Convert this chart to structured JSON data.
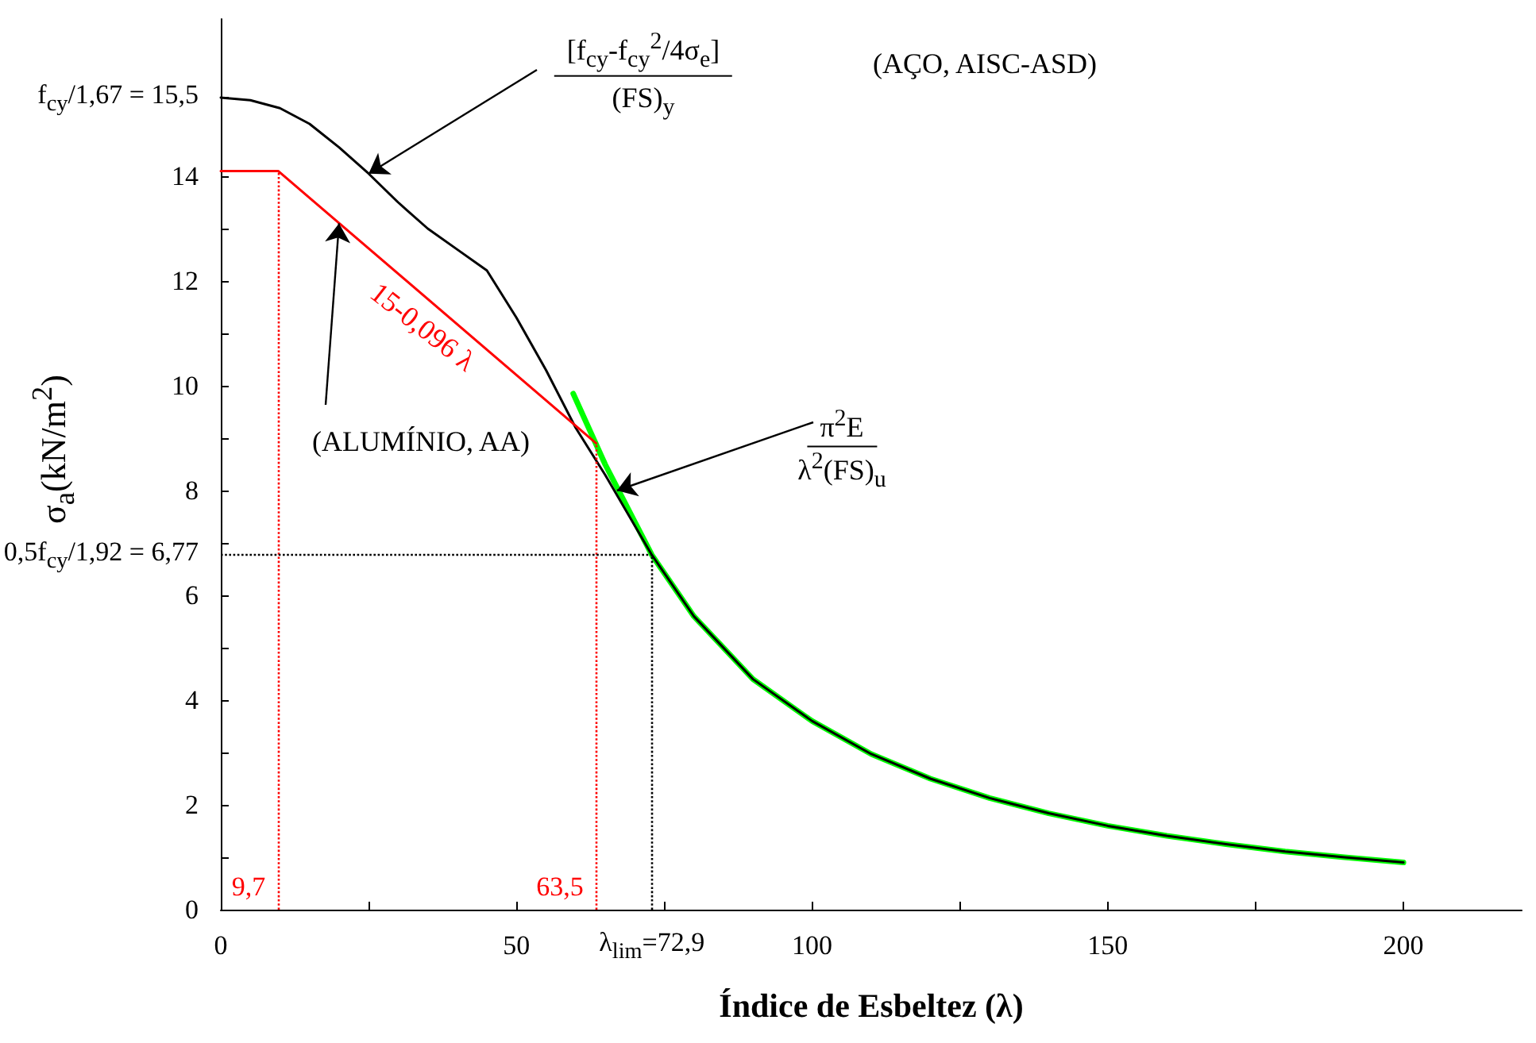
{
  "chart_data": {
    "type": "line",
    "xlabel": "Índice de Esbeltez (λ)",
    "ylabel": "σ$_{a}$(kN/m$^{2}$)",
    "xlim": [
      0,
      220
    ],
    "xticks": [
      0,
      {
        "value": 25,
        "label": null
      },
      50,
      {
        "value": 75,
        "label": null
      },
      100,
      {
        "value": 125,
        "label": null
      },
      150,
      {
        "value": 175,
        "label": null
      },
      200
    ],
    "ylim": [
      0,
      17
    ],
    "yticks": [
      0,
      {
        "value": 1,
        "label": null
      },
      2,
      {
        "value": 3,
        "label": null
      },
      4,
      {
        "value": 5,
        "label": null
      },
      6,
      {
        "value": 7,
        "label": null
      },
      8,
      {
        "value": 9,
        "label": null
      },
      10,
      {
        "value": 11,
        "label": null
      },
      12,
      {
        "value": 13,
        "label": null
      },
      14,
      {
        "value": 15.5,
        "label": "f$_{cy}$/1,67 = 15,5"
      }
    ],
    "grid": false,
    "marker": "none",
    "series": [
      {
        "color": "#00ff00",
        "x": [
          59.6,
          65,
          72.9,
          80,
          90,
          100,
          110,
          120,
          130,
          140,
          150,
          160,
          170,
          180,
          190,
          200
        ],
        "values": [
          9.85,
          8.5,
          6.77,
          5.6,
          4.4,
          3.6,
          2.97,
          2.5,
          2.13,
          1.84,
          1.6,
          1.41,
          1.25,
          1.11,
          1.0,
          0.9
        ]
      },
      {
        "color": "#000000",
        "x": [
          0,
          5,
          10,
          15,
          20,
          25,
          30,
          35,
          40,
          45,
          50,
          55,
          60,
          65,
          72.9,
          80,
          90,
          100,
          110,
          120,
          130,
          140,
          150,
          160,
          170,
          180,
          190,
          200
        ],
        "values": [
          15.5,
          15.45,
          15.3,
          15.0,
          14.55,
          14.05,
          13.5,
          13.0,
          12.6,
          12.2,
          11.3,
          10.3,
          9.2,
          8.3,
          6.77,
          5.6,
          4.4,
          3.6,
          2.97,
          2.5,
          2.13,
          1.84,
          1.6,
          1.41,
          1.25,
          1.11,
          1.0,
          0.9
        ]
      },
      {
        "color": "#ff0000",
        "x": [
          0,
          9.7,
          63.5
        ],
        "values": [
          14.1,
          14.1,
          8.9
        ]
      }
    ],
    "ref_lines": [
      {
        "axis": "x",
        "value": 9.7,
        "label": "9,7",
        "color": "#ff0000",
        "line_style": "dotted"
      },
      {
        "axis": "x",
        "value": 63.5,
        "label": "63,5",
        "color": "#ff0000",
        "line_style": "dotted"
      },
      {
        "axis": "x",
        "value": 72.9,
        "label": "λ$_{lim}$=72,9",
        "color": "#000000",
        "line_style": "dotted"
      },
      {
        "axis": "y",
        "value": 6.77,
        "label": "0,5f$_{cy}$/1,92 = 6,77",
        "color": "#000000",
        "line_style": "dotted"
      }
    ],
    "annotations": [
      {
        "text": "[f$_{cy}$-f$_{cy}$$^{2}$/4σ$_{e}$]",
        "x": 25,
        "y": 14.05
      },
      "(FS)$_{y}$",
      "(AÇO, AISC-ASD)",
      {
        "text": "(ALUMÍNIO, AA)",
        "x": 20,
        "y": 13.1
      },
      {
        "text": "15-0,096 λ",
        "x": 33,
        "y": 11.8
      },
      {
        "text": "π$^{2}$E",
        "x": 67,
        "y": 8.0
      },
      "λ$^{2}$(FS)$_{u}$"
    ]
  }
}
